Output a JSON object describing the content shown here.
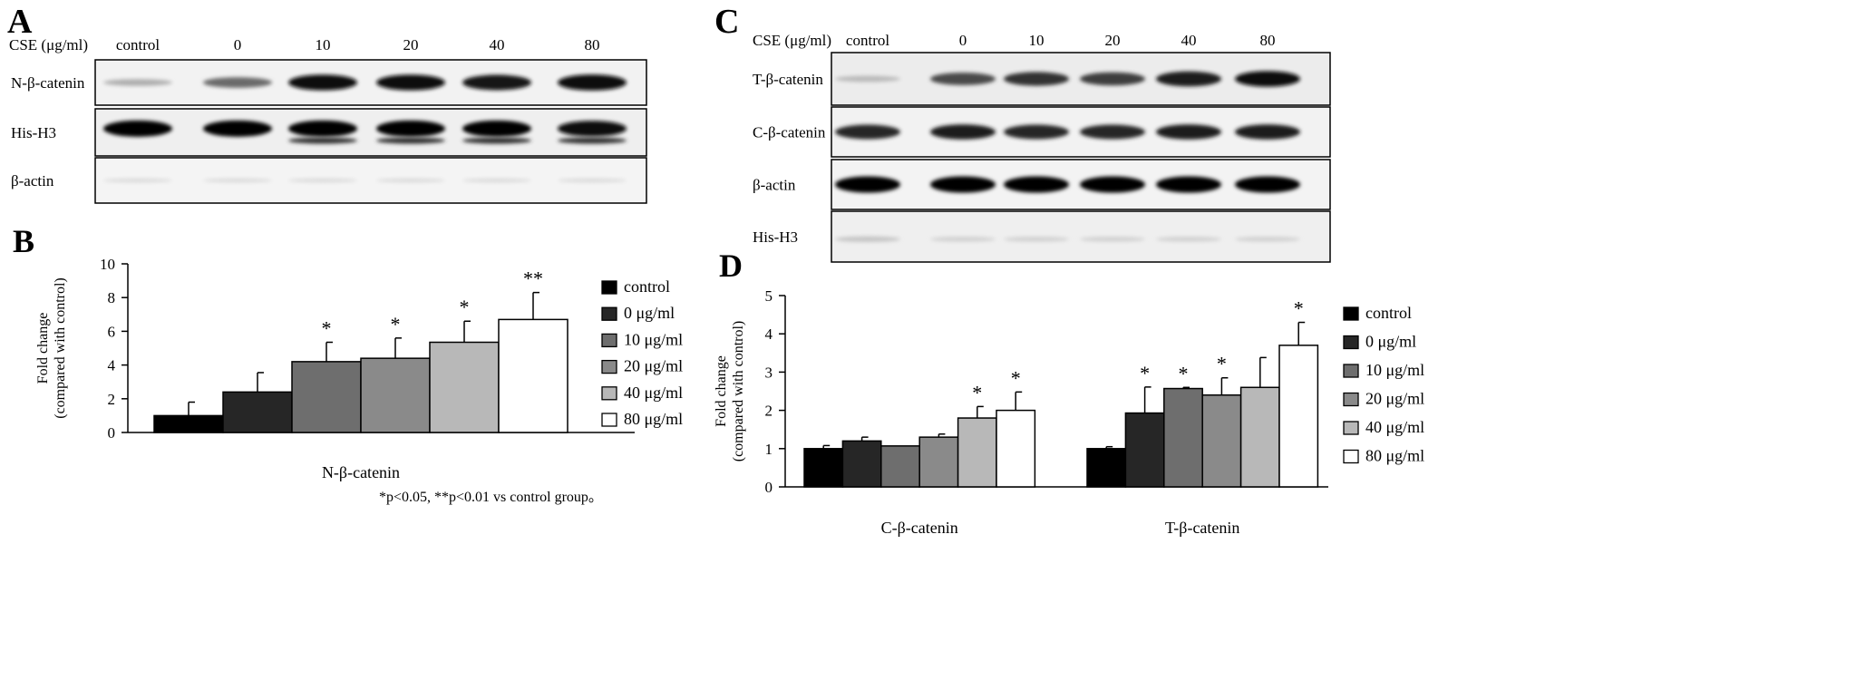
{
  "panels": {
    "A": {
      "letter": "A",
      "cse_label": "CSE (μg/ml)",
      "lanes": [
        "control",
        "0",
        "10",
        "20",
        "40",
        "80"
      ],
      "rows": [
        {
          "label": "N-β-catenin",
          "intensity": [
            0.25,
            0.55,
            0.95,
            0.95,
            0.92,
            0.97
          ]
        },
        {
          "label": "His-H3",
          "intensity": [
            1.0,
            1.0,
            1.0,
            1.0,
            1.0,
            0.95
          ]
        },
        {
          "label": "β-actin",
          "intensity": [
            0.05,
            0.05,
            0.05,
            0.05,
            0.05,
            0.05
          ]
        }
      ]
    },
    "C": {
      "letter": "C",
      "cse_label": "CSE (μg/ml)",
      "lanes": [
        "control",
        "0",
        "10",
        "20",
        "40",
        "80"
      ],
      "rows": [
        {
          "label": "T-β-catenin",
          "intensity": [
            0.2,
            0.7,
            0.8,
            0.75,
            0.9,
            0.95
          ]
        },
        {
          "label": "C-β-catenin",
          "intensity": [
            0.85,
            0.9,
            0.85,
            0.85,
            0.9,
            0.9
          ]
        },
        {
          "label": "β-actin",
          "intensity": [
            1.0,
            1.0,
            1.0,
            1.0,
            1.0,
            1.0
          ]
        },
        {
          "label": "His-H3",
          "intensity": [
            0.15,
            0.1,
            0.1,
            0.1,
            0.1,
            0.1
          ]
        }
      ]
    }
  },
  "chart_data": [
    {
      "panel": "B",
      "type": "bar",
      "ylabel": "Fold change\n(compared with control)",
      "ylim": [
        0,
        10
      ],
      "yticks": [
        0,
        2,
        4,
        6,
        8,
        10
      ],
      "categories": [
        "N-β-catenin"
      ],
      "series": [
        {
          "name": "control",
          "color": "#000000",
          "values": [
            1.0
          ],
          "error": [
            0.8
          ],
          "sig": [
            ""
          ]
        },
        {
          "name": "0 μg/ml",
          "color": "#262626",
          "values": [
            2.4
          ],
          "error": [
            1.15
          ],
          "sig": [
            ""
          ]
        },
        {
          "name": "10 μg/ml",
          "color": "#6e6e6e",
          "values": [
            4.2
          ],
          "error": [
            1.15
          ],
          "sig": [
            "*"
          ]
        },
        {
          "name": "20 μg/ml",
          "color": "#8a8a8a",
          "values": [
            4.4
          ],
          "error": [
            1.2
          ],
          "sig": [
            "*"
          ]
        },
        {
          "name": "40 μg/ml",
          "color": "#b8b8b8",
          "values": [
            5.35
          ],
          "error": [
            1.25
          ],
          "sig": [
            "*"
          ]
        },
        {
          "name": "80 μg/ml",
          "color": "#ffffff",
          "values": [
            6.7
          ],
          "error": [
            1.6
          ],
          "sig": [
            "**"
          ]
        }
      ],
      "footnote": "*p<0.05, **p<0.01 vs control group。",
      "legend_position": "right"
    },
    {
      "panel": "D",
      "type": "bar",
      "ylabel": "Fold change\n(compared with control)",
      "ylim": [
        0,
        5
      ],
      "yticks": [
        0,
        1,
        2,
        3,
        4,
        5
      ],
      "categories": [
        "C-β-catenin",
        "T-β-catenin"
      ],
      "series": [
        {
          "name": "control",
          "color": "#000000",
          "values": [
            1.0,
            1.0
          ],
          "error": [
            0.08,
            0.05
          ],
          "sig": [
            "",
            ""
          ]
        },
        {
          "name": "0 μg/ml",
          "color": "#262626",
          "values": [
            1.2,
            1.93
          ],
          "error": [
            0.1,
            0.68
          ],
          "sig": [
            "",
            "*"
          ]
        },
        {
          "name": "10 μg/ml",
          "color": "#6e6e6e",
          "values": [
            1.07,
            2.57
          ],
          "error": [
            0.0,
            0.03
          ],
          "sig": [
            "",
            "*"
          ]
        },
        {
          "name": "20 μg/ml",
          "color": "#8a8a8a",
          "values": [
            1.3,
            2.4
          ],
          "error": [
            0.08,
            0.45
          ],
          "sig": [
            "",
            "*"
          ]
        },
        {
          "name": "40 μg/ml",
          "color": "#b8b8b8",
          "values": [
            1.8,
            2.6
          ],
          "error": [
            0.3,
            0.78
          ],
          "sig": [
            "*",
            ""
          ]
        },
        {
          "name": "80 μg/ml",
          "color": "#ffffff",
          "values": [
            2.0,
            3.7
          ],
          "error": [
            0.48,
            0.6
          ],
          "sig": [
            "*",
            "*"
          ]
        }
      ],
      "legend_position": "right"
    }
  ]
}
